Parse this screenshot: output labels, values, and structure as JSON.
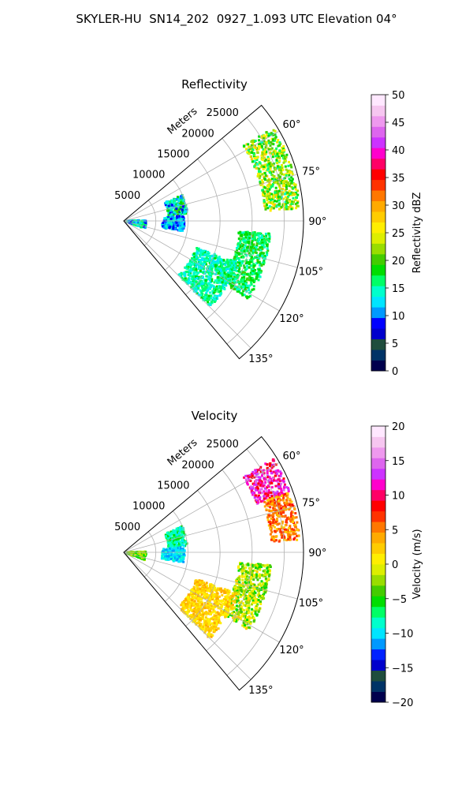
{
  "suptitle": "SKYLER-HU  SN14_202  0927_1.093 UTC Elevation 04°",
  "colors": {
    "grid": "#b0b0b0",
    "refl_stops": [
      "#00004d",
      "#003366",
      "#1f4d3d",
      "#0000cc",
      "#0000ff",
      "#0099ff",
      "#00e5ff",
      "#00ffcc",
      "#00ff66",
      "#00dd00",
      "#44cc00",
      "#99dd00",
      "#ddee00",
      "#ffee00",
      "#ffcc00",
      "#ffaa00",
      "#ff7700",
      "#ff3300",
      "#ff0000",
      "#ff0066",
      "#ff00cc",
      "#cc33ff",
      "#dd66ee",
      "#ee99ee",
      "#f6c6f0",
      "#ffe8ff"
    ],
    "vel_stops": [
      "#00004d",
      "#003366",
      "#1f4d3d",
      "#0000cc",
      "#0022ff",
      "#0099ff",
      "#00e5ff",
      "#00ffcc",
      "#00ff66",
      "#00dd00",
      "#44cc00",
      "#99dd00",
      "#ddee00",
      "#ffee00",
      "#ffcc00",
      "#ffaa00",
      "#ff7700",
      "#ff3300",
      "#ff0000",
      "#ff0066",
      "#ff00cc",
      "#cc33ff",
      "#dd66ee",
      "#ee99ee",
      "#f6c6f0",
      "#ffe8ff"
    ]
  },
  "chart_data": [
    {
      "type": "heatmap",
      "subtype": "polar-sector (PPI radar)",
      "title": "Reflectivity",
      "r_label": "Meters",
      "r_range": [
        0,
        28000
      ],
      "r_ticks": [
        5000,
        10000,
        15000,
        20000,
        25000
      ],
      "r_tick_labels": [
        "5000",
        "10000",
        "15000",
        "20000",
        "25000"
      ],
      "theta_range_deg": [
        50,
        140
      ],
      "theta_ticks_deg": [
        60,
        75,
        90,
        105,
        120,
        135
      ],
      "theta_tick_labels": [
        "60°",
        "75°",
        "90°",
        "105°",
        "120°",
        "135°"
      ],
      "colorbar": {
        "label": "Reflectivity dBZ",
        "range": [
          0,
          50
        ],
        "ticks": [
          0,
          5,
          10,
          15,
          20,
          25,
          30,
          35,
          40,
          45,
          50
        ],
        "tick_labels": [
          "0",
          "5",
          "10",
          "15",
          "20",
          "25",
          "30",
          "35",
          "40",
          "45",
          "50"
        ]
      },
      "echo_regions": [
        {
          "az_range": [
            58,
            86
          ],
          "r_range": [
            22000,
            27500
          ],
          "value_range": [
            15,
            28
          ]
        },
        {
          "az_range": [
            66,
            84
          ],
          "r_range": [
            7000,
            10000
          ],
          "value_range": [
            8,
            20
          ]
        },
        {
          "az_range": [
            85,
            100
          ],
          "r_range": [
            6000,
            9500
          ],
          "value_range": [
            8,
            15
          ]
        },
        {
          "az_range": [
            88,
            110
          ],
          "r_range": [
            0,
            3500
          ],
          "value_range": [
            8,
            17
          ]
        },
        {
          "az_range": [
            95,
            122
          ],
          "r_range": [
            18000,
            23000
          ],
          "value_range": [
            14,
            20
          ]
        },
        {
          "az_range": [
            110,
            135
          ],
          "r_range": [
            12000,
            19000
          ],
          "value_range": [
            12,
            18
          ]
        }
      ]
    },
    {
      "type": "heatmap",
      "subtype": "polar-sector (PPI radar)",
      "title": "Velocity",
      "r_label": "Meters",
      "r_range": [
        0,
        28000
      ],
      "r_ticks": [
        5000,
        10000,
        15000,
        20000,
        25000
      ],
      "r_tick_labels": [
        "5000",
        "10000",
        "15000",
        "20000",
        "25000"
      ],
      "theta_range_deg": [
        50,
        140
      ],
      "theta_ticks_deg": [
        60,
        75,
        90,
        105,
        120,
        135
      ],
      "theta_tick_labels": [
        "60°",
        "75°",
        "90°",
        "105°",
        "120°",
        "135°"
      ],
      "colorbar": {
        "label": "Velocity (m/s)",
        "range": [
          -20,
          20
        ],
        "ticks": [
          -20,
          -15,
          -10,
          -5,
          0,
          5,
          10,
          15,
          20
        ],
        "tick_labels": [
          "−20",
          "−15",
          "−10",
          "−5",
          "0",
          "5",
          "10",
          "15",
          "20"
        ]
      },
      "echo_regions": [
        {
          "az_range": [
            58,
            70
          ],
          "r_range": [
            22000,
            27500
          ],
          "value_range": [
            8,
            15
          ]
        },
        {
          "az_range": [
            70,
            86
          ],
          "r_range": [
            23000,
            27500
          ],
          "value_range": [
            2,
            8
          ]
        },
        {
          "az_range": [
            66,
            84
          ],
          "r_range": [
            7000,
            10000
          ],
          "value_range": [
            -10,
            -5
          ]
        },
        {
          "az_range": [
            85,
            100
          ],
          "r_range": [
            6000,
            9500
          ],
          "value_range": [
            -12,
            -8
          ]
        },
        {
          "az_range": [
            88,
            110
          ],
          "r_range": [
            0,
            3500
          ],
          "value_range": [
            -6,
            0
          ]
        },
        {
          "az_range": [
            95,
            122
          ],
          "r_range": [
            18000,
            23000
          ],
          "value_range": [
            -6,
            2
          ]
        },
        {
          "az_range": [
            110,
            135
          ],
          "r_range": [
            12000,
            19000
          ],
          "value_range": [
            0,
            4
          ]
        }
      ]
    }
  ]
}
